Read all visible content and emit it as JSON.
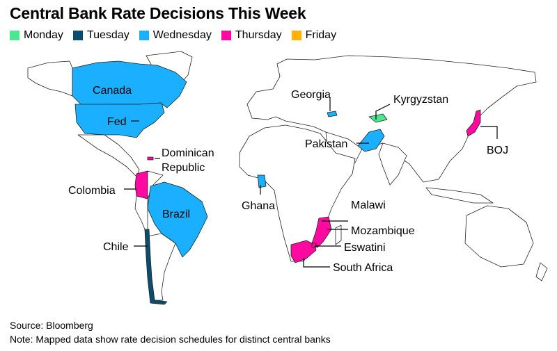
{
  "title": "Central Bank Rate Decisions This Week",
  "legend": [
    {
      "label": "Monday",
      "color": "#4ee68f"
    },
    {
      "label": "Tuesday",
      "color": "#0b4d6e"
    },
    {
      "label": "Wednesday",
      "color": "#1ab0ff"
    },
    {
      "label": "Thursday",
      "color": "#ff0aa0"
    },
    {
      "label": "Friday",
      "color": "#ffb300"
    }
  ],
  "map_labels": {
    "canada": "Canada",
    "fed": "Fed",
    "dominican": "Dominican",
    "republic": "Republic",
    "colombia": "Colombia",
    "brazil": "Brazil",
    "chile": "Chile",
    "georgia": "Georgia",
    "kyrgyzstan": "Kyrgyzstan",
    "pakistan": "Pakistan",
    "ghana": "Ghana",
    "malawi": "Malawi",
    "mozambique": "Mozambique",
    "eswatini": "Eswatini",
    "south_africa": "South Africa",
    "boj": "BOJ"
  },
  "regions": {
    "Monday": [
      "Kyrgyzstan"
    ],
    "Tuesday": [
      "Chile"
    ],
    "Wednesday": [
      "Canada",
      "Fed",
      "Brazil",
      "Georgia",
      "Pakistan",
      "Ghana"
    ],
    "Thursday": [
      "Dominican Republic",
      "Colombia",
      "Malawi",
      "Mozambique",
      "Eswatini",
      "South Africa",
      "BOJ"
    ],
    "Friday": []
  },
  "footer": {
    "source": "Source: Bloomberg",
    "note": "Note: Mapped data show rate decision schedules for distinct central banks"
  }
}
